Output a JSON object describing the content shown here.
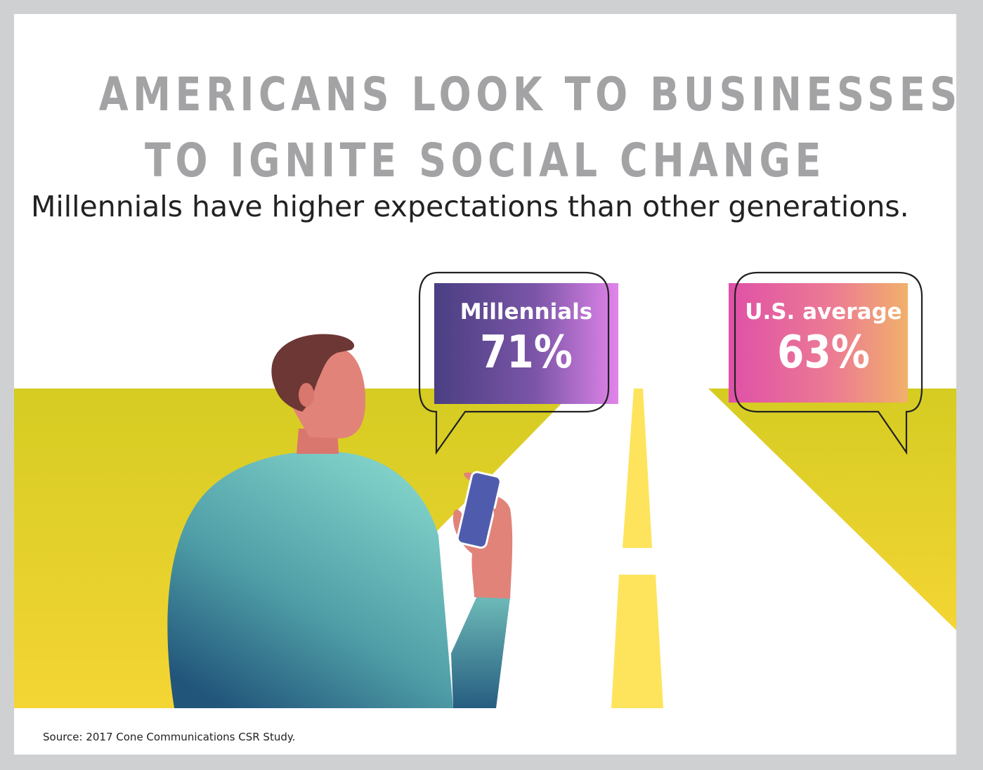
{
  "title_line_1": "AMERICANS LOOK TO BUSINESSES",
  "title_line_2": "TO IGNITE SOCIAL CHANGE",
  "subtitle": "Millennials have higher expectations than other generations.",
  "stats": [
    {
      "label": "Millennials",
      "value": "71%",
      "gradient": [
        "#4a3f82",
        "#e184ea"
      ]
    },
    {
      "label": "U.S. average",
      "value": "63%",
      "gradient": [
        "#e050a8",
        "#f1b06a"
      ]
    }
  ],
  "source": "Source: 2017 Cone Communications CSR Study.",
  "colors": {
    "frame": "#cfd0d2",
    "title": "#a3a3a5",
    "field_top": "#d5cc22",
    "field_bottom": "#f4d534",
    "road_line": "#fde45c",
    "sweater_light": "#7fcfc8",
    "sweater_dark": "#21557a",
    "skin": "#e18379",
    "hair": "#6c3734",
    "phone": "#4f5cae"
  }
}
